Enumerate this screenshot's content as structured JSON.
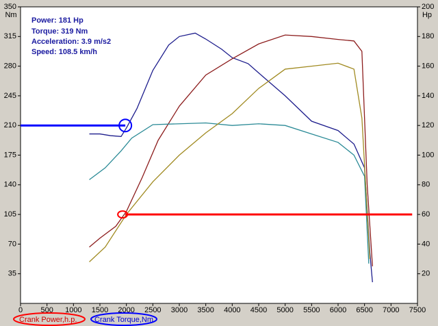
{
  "chart_data": {
    "type": "line",
    "info": [
      "Power: 181 Hp",
      "Torque: 319 Nm",
      "Acceleration: 3.9 m/s2",
      "Speed: 108.5 km/h"
    ],
    "y_unit": "Nm",
    "y2_unit": "Hp",
    "xlim": [
      0,
      7500
    ],
    "xticks": [
      0,
      500,
      1000,
      1500,
      2000,
      2500,
      3000,
      3500,
      4000,
      4500,
      5000,
      5500,
      6000,
      6500,
      7000,
      7500
    ],
    "ylim": [
      0,
      350
    ],
    "yticks": [
      35,
      70,
      105,
      140,
      175,
      210,
      245,
      280,
      315,
      350
    ],
    "y2lim": [
      0,
      200
    ],
    "y2ticks": [
      20,
      40,
      60,
      80,
      100,
      120,
      140,
      160,
      180,
      200
    ],
    "series": [
      {
        "name": "Crank Torque,Nm",
        "color": "#1c1c8c",
        "axis": "y",
        "x": [
          1300,
          1500,
          1700,
          1900,
          2000,
          2200,
          2500,
          2800,
          3000,
          3300,
          3500,
          3800,
          4000,
          4300,
          4500,
          5000,
          5500,
          6000,
          6300,
          6500,
          6600,
          6650
        ],
        "values": [
          200,
          200,
          198,
          197,
          207,
          230,
          275,
          305,
          315,
          319,
          312,
          300,
          290,
          283,
          272,
          245,
          215,
          204,
          188,
          160,
          60,
          25
        ]
      },
      {
        "name": "Crank Power,h.p.",
        "color": "#8c1c1c",
        "axis": "y2",
        "x": [
          1300,
          1500,
          1800,
          2000,
          2300,
          2600,
          3000,
          3500,
          4000,
          4500,
          5000,
          5500,
          6000,
          6300,
          6450,
          6550,
          6650
        ],
        "values": [
          38,
          44,
          52,
          62,
          85,
          110,
          133,
          154,
          165,
          175,
          181,
          180,
          178,
          177,
          170,
          80,
          25
        ]
      },
      {
        "color": "#2a8a96",
        "axis": "y",
        "x": [
          1300,
          1600,
          1900,
          2100,
          2500,
          3000,
          3500,
          4000,
          4500,
          5000,
          5500,
          6000,
          6300,
          6500,
          6580
        ],
        "values": [
          146,
          160,
          180,
          195,
          211,
          212,
          213,
          210,
          212,
          210,
          200,
          190,
          175,
          150,
          47
        ]
      },
      {
        "color": "#a08a20",
        "axis": "y2",
        "x": [
          1300,
          1600,
          2000,
          2500,
          3000,
          3500,
          4000,
          4500,
          5000,
          5500,
          6000,
          6300,
          6450,
          6600
        ],
        "values": [
          28,
          38,
          60,
          82,
          100,
          115,
          128,
          145,
          158,
          160,
          162,
          158,
          125,
          30
        ]
      }
    ],
    "reference_lines": [
      {
        "color": "#0000ff",
        "value": 210,
        "x": [
          0,
          1980
        ]
      },
      {
        "color": "#ff0000",
        "value": 105,
        "x": [
          1980,
          7400
        ]
      }
    ]
  }
}
